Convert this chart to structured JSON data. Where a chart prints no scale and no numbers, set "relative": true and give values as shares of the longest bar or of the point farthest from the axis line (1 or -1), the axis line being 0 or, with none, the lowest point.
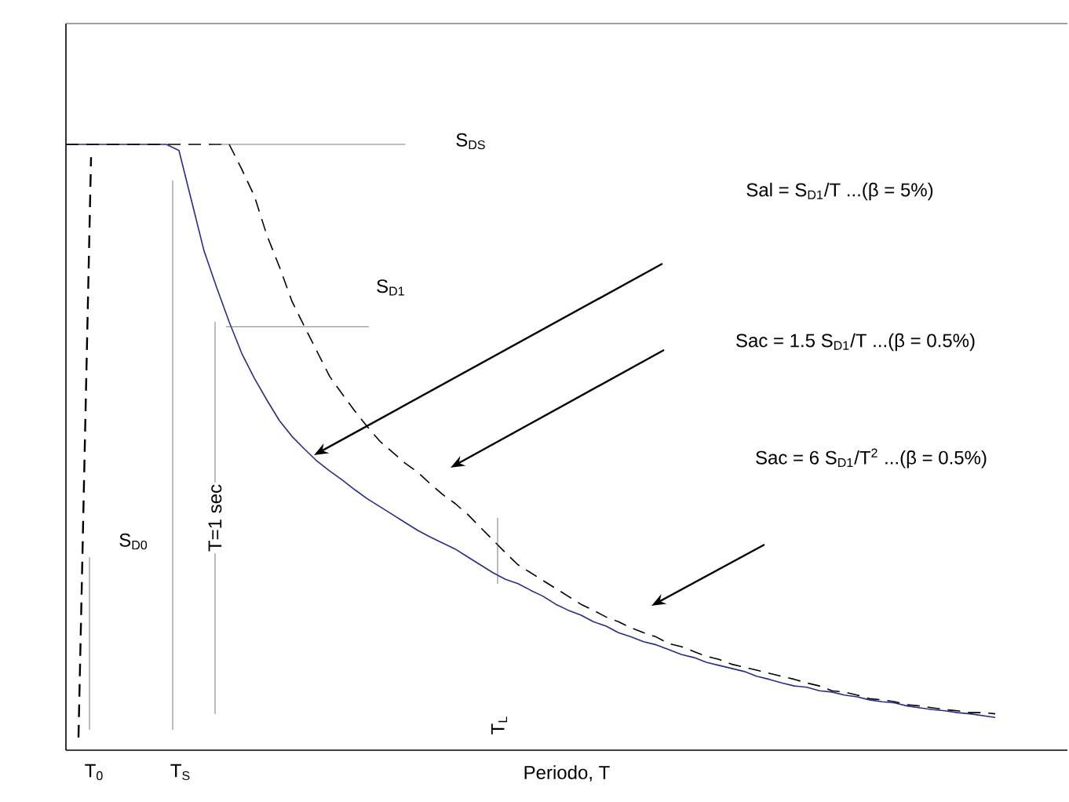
{
  "chart_data": {
    "type": "line",
    "relative": true,
    "xlabel": "Periodo, T",
    "categories": [
      null,
      null,
      null,
      null,
      null,
      null,
      null,
      null,
      null,
      null,
      null,
      null,
      null,
      null,
      null,
      null,
      null,
      null,
      null,
      null,
      null,
      null,
      null,
      null,
      null,
      null,
      null,
      null,
      null,
      null,
      null,
      null,
      null,
      null,
      null,
      null,
      null,
      null,
      null,
      null,
      null,
      null,
      null,
      null,
      null,
      null,
      null,
      null,
      null,
      null,
      null,
      null,
      null,
      null,
      null,
      null,
      null,
      null,
      null,
      null,
      null,
      null,
      null,
      null,
      null,
      null,
      null,
      null,
      null,
      null,
      null,
      null,
      null,
      null,
      null
    ],
    "series": [
      {
        "color": "#2b2b8a",
        "values": [
          1,
          1,
          1,
          1,
          1,
          1,
          1,
          1,
          1,
          0.99,
          0.907,
          0.824,
          0.764,
          0.707,
          0.655,
          0.614,
          0.578,
          0.544,
          0.518,
          0.497,
          0.477,
          0.461,
          0.446,
          0.43,
          0.415,
          0.402,
          0.389,
          0.376,
          0.363,
          0.352,
          0.342,
          0.332,
          0.319,
          0.306,
          0.293,
          0.282,
          0.275,
          0.264,
          0.254,
          0.241,
          0.231,
          0.223,
          0.212,
          0.205,
          0.194,
          0.187,
          0.179,
          0.174,
          0.166,
          0.158,
          0.153,
          0.145,
          0.14,
          0.135,
          0.13,
          0.122,
          0.117,
          0.111,
          0.106,
          0.104,
          0.098,
          0.096,
          0.091,
          0.088,
          0.083,
          0.08,
          0.078,
          0.073,
          0.07,
          0.067,
          0.065,
          0.062,
          0.06,
          0.057,
          0.054
        ]
      },
      {
        "color": "#000000",
        "line_style": "dashed",
        "values": [
          1,
          1,
          1,
          1,
          1,
          1,
          1,
          1,
          1,
          1,
          1,
          1,
          1,
          1,
          0.959,
          0.915,
          0.85,
          0.798,
          0.741,
          0.699,
          0.658,
          0.617,
          0.588,
          0.56,
          0.534,
          0.51,
          0.492,
          0.474,
          0.459,
          0.44,
          0.422,
          0.407,
          0.389,
          0.368,
          0.347,
          0.326,
          0.306,
          0.293,
          0.28,
          0.267,
          0.254,
          0.241,
          0.231,
          0.22,
          0.212,
          0.202,
          0.194,
          0.187,
          0.176,
          0.171,
          0.163,
          0.155,
          0.15,
          0.142,
          0.137,
          0.132,
          0.127,
          0.122,
          0.117,
          0.111,
          0.106,
          0.098,
          0.096,
          0.091,
          0.085,
          0.083,
          0.08,
          0.075,
          0.073,
          0.07,
          0.067,
          0.065,
          0.062,
          0.062,
          0.06
        ]
      },
      {
        "color": "#000000",
        "line_style": "dashed",
        "values": [
          null,
          0.021,
          0.979,
          null,
          null,
          null,
          null,
          null,
          null,
          null,
          null,
          null,
          null,
          null,
          null,
          null,
          null,
          null,
          null,
          null,
          null,
          null,
          null,
          null,
          null,
          null,
          null,
          null,
          null,
          null,
          null,
          null,
          null,
          null,
          null,
          null,
          null,
          null,
          null,
          null,
          null,
          null,
          null,
          null,
          null,
          null,
          null,
          null,
          null,
          null,
          null,
          null,
          null,
          null,
          null,
          null,
          null,
          null,
          null,
          null,
          null,
          null,
          null,
          null,
          null,
          null,
          null,
          null,
          null,
          null,
          null,
          null,
          null,
          null,
          null
        ]
      }
    ],
    "ref_lines": [
      {
        "axis": "y",
        "value": 1,
        "label": "S$_{DS}$",
        "color": "#595959"
      },
      {
        "axis": "y",
        "value": 0.699,
        "label": "S$_{D1}$",
        "color": "#595959"
      }
    ],
    "annotations": [
      "Sal = S$_{D1}$/T ...(β = 5%)",
      "Sac = 1.5 S$_{D1}$/T ...(β = 0.5%)",
      "Sac = 6 S$_{D1}$/T$^{2}$ ...(β = 0.5%)",
      "S$_{D0}$",
      "T$_{0}$",
      "T$_{S}$",
      "T=1 sec",
      "T$_{L}$"
    ]
  }
}
